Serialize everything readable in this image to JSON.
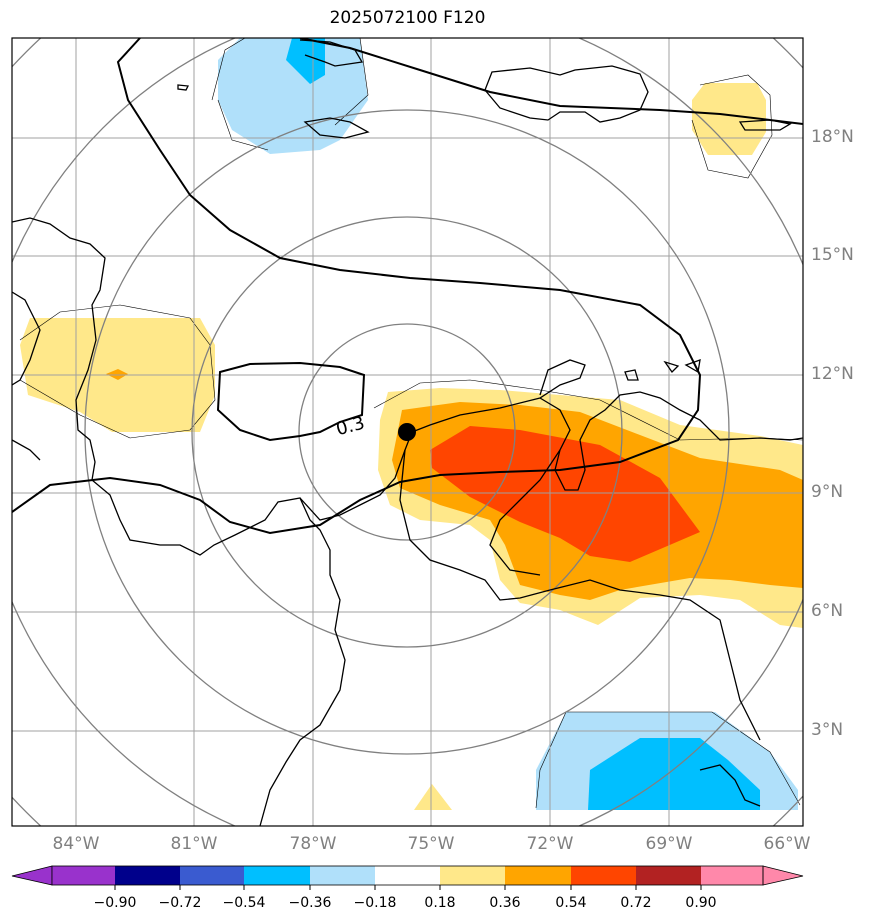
{
  "title": "2025072100 F120",
  "map": {
    "contour_label": "0.3",
    "center_marker": {
      "lon": -75.6,
      "lat": 10.6
    },
    "extent": {
      "lon_min": -85.6,
      "lon_max": -65.8,
      "lat_min": 0.0,
      "lat_max": 19.8
    }
  },
  "lat_labels": [
    "18°N",
    "15°N",
    "12°N",
    "9°N",
    "6°N",
    "3°N"
  ],
  "lon_labels": [
    "84°W",
    "81°W",
    "78°W",
    "75°W",
    "72°W",
    "69°W",
    "66°W"
  ],
  "colorbar": {
    "ticks": [
      "−0.90",
      "−0.72",
      "−0.54",
      "−0.36",
      "−0.18",
      "0.18",
      "0.36",
      "0.54",
      "0.72",
      "0.90"
    ],
    "colors": [
      "#9932cc",
      "#00008b",
      "#3a5bd0",
      "#00bfff",
      "#b0e0fa",
      "#ffffff",
      "#ffe88a",
      "#ffa500",
      "#ff4500",
      "#b22222",
      "#ff88aa"
    ]
  },
  "colors": {
    "light_yellow": "#ffe88a",
    "orange": "#ffa500",
    "red_orange": "#ff4500",
    "light_blue": "#b0e0fa",
    "deep_sky_blue": "#00bfff",
    "grid": "#a0a0a0",
    "range_rings": "#808080"
  }
}
